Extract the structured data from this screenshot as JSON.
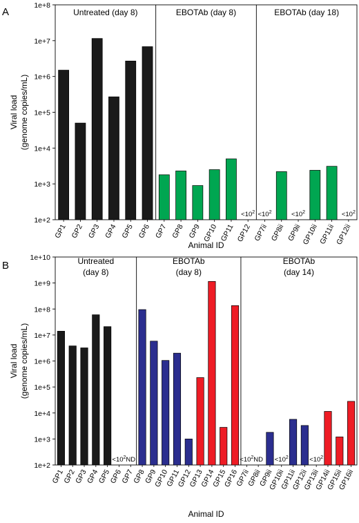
{
  "chart_data": [
    {
      "type": "bar",
      "panel_label": "A",
      "xlabel": "Animal ID",
      "ylabel": "Viral load",
      "ylabel_line2": "(genome copies/mL)",
      "yscale": "log",
      "ylim": [
        100,
        100000000
      ],
      "yticks": [
        {
          "value": 100,
          "base": "1e+",
          "exp": "2"
        },
        {
          "value": 1000,
          "base": "1e+",
          "exp": "3"
        },
        {
          "value": 10000,
          "base": "1e+",
          "exp": "4"
        },
        {
          "value": 100000,
          "base": "1e+",
          "exp": "5"
        },
        {
          "value": 1000000,
          "base": "1e+",
          "exp": "6"
        },
        {
          "value": 10000000,
          "base": "1e+",
          "exp": "7"
        },
        {
          "value": 100000000,
          "base": "1e+",
          "exp": "8"
        }
      ],
      "groups": [
        {
          "label": "Untreated (day 8)",
          "label_line2": "",
          "from": 0,
          "to": 5
        },
        {
          "label": "EBOTAb (day 8)",
          "label_line2": "",
          "from": 6,
          "to": 11
        },
        {
          "label": "EBOTAb (day 18)",
          "label_line2": "",
          "from": 12,
          "to": 17
        }
      ],
      "categories": [
        "GP1",
        "GP2",
        "GP3",
        "GP4",
        "GP5",
        "GP6",
        "GP7",
        "GP8",
        "GP9",
        "GP10",
        "GP11",
        "GP12",
        "GP7ii",
        "GP8ii",
        "GP9ii",
        "GP10ii",
        "GP11ii",
        "GP12ii"
      ],
      "values": [
        1500000,
        50000,
        11500000,
        270000,
        2700000,
        6800000,
        1800,
        2300,
        900,
        2500,
        5000,
        null,
        null,
        2200,
        null,
        2400,
        3100,
        null
      ],
      "colors": [
        "#1a1a1a",
        "#1a1a1a",
        "#1a1a1a",
        "#1a1a1a",
        "#1a1a1a",
        "#1a1a1a",
        "#00a651",
        "#00a651",
        "#00a651",
        "#00a651",
        "#00a651",
        "#00a651",
        "#00a651",
        "#00a651",
        "#00a651",
        "#00a651",
        "#00a651",
        "#00a651"
      ],
      "annotations": [
        {
          "index": 11,
          "text": "<10",
          "sup": "2"
        },
        {
          "index": 12,
          "text": "<10",
          "sup": "2"
        },
        {
          "index": 14,
          "text": "<10",
          "sup": "2"
        },
        {
          "index": 17,
          "text": "<10",
          "sup": "2"
        }
      ]
    },
    {
      "type": "bar",
      "panel_label": "B",
      "xlabel": "Animal ID",
      "ylabel": "Viral load",
      "ylabel_line2": "(genome copies/mL)",
      "yscale": "log",
      "ylim": [
        100,
        10000000000
      ],
      "yticks": [
        {
          "value": 100,
          "base": "1e+",
          "exp": "2"
        },
        {
          "value": 1000,
          "base": "1e+",
          "exp": "3"
        },
        {
          "value": 10000,
          "base": "1e+",
          "exp": "4"
        },
        {
          "value": 100000,
          "base": "1e+",
          "exp": "5"
        },
        {
          "value": 1000000,
          "base": "1e+",
          "exp": "6"
        },
        {
          "value": 10000000,
          "base": "1e+",
          "exp": "7"
        },
        {
          "value": 100000000,
          "base": "1e+",
          "exp": "8"
        },
        {
          "value": 1000000000,
          "base": "1e+",
          "exp": "9"
        },
        {
          "value": 10000000000,
          "base": "1e+",
          "exp": "10"
        }
      ],
      "groups": [
        {
          "label": "Untreated",
          "label_line2": "(day 8)",
          "from": 0,
          "to": 6
        },
        {
          "label": "EBOTAb",
          "label_line2": "(day 8)",
          "from": 7,
          "to": 15
        },
        {
          "label": "EBOTAb",
          "label_line2": "(day 14)",
          "from": 16,
          "to": 25
        }
      ],
      "categories": [
        "GP1",
        "GP2",
        "GP3",
        "GP4",
        "GP5",
        "GP6",
        "GP7",
        "GP8",
        "GP9",
        "GP10",
        "GP11",
        "GP12",
        "GP13",
        "GP14",
        "GP15",
        "GP16",
        "GP7ii",
        "GP8ii",
        "GP9ii",
        "GP10ii",
        "GP11ii",
        "GP12ii",
        "GP13ii",
        "GP14ii",
        "GP15ii",
        "GP16ii"
      ],
      "values": [
        14000000,
        3800000,
        3200000,
        60000000,
        21000000,
        null,
        null,
        95000000,
        5800000,
        1050000,
        2000000,
        1000,
        230000,
        1150000000,
        2800,
        135000000,
        null,
        null,
        1800,
        null,
        5700,
        3300,
        null,
        11500,
        1200,
        28000
      ],
      "colors": [
        "#1a1a1a",
        "#1a1a1a",
        "#1a1a1a",
        "#1a1a1a",
        "#1a1a1a",
        "#1a1a1a",
        "#1a1a1a",
        "#2b2e8f",
        "#2b2e8f",
        "#2b2e8f",
        "#2b2e8f",
        "#2b2e8f",
        "#ee1c25",
        "#ee1c25",
        "#ee1c25",
        "#ee1c25",
        "#2b2e8f",
        "#2b2e8f",
        "#2b2e8f",
        "#2b2e8f",
        "#2b2e8f",
        "#2b2e8f",
        "#ee1c25",
        "#ee1c25",
        "#ee1c25",
        "#ee1c25"
      ],
      "annotations": [
        {
          "index": 5,
          "text": "<10",
          "sup": "2"
        },
        {
          "index": 6,
          "text": "ND",
          "sup": ""
        },
        {
          "index": 16,
          "text": "<10",
          "sup": "2"
        },
        {
          "index": 17,
          "text": "ND",
          "sup": ""
        },
        {
          "index": 19,
          "text": "<10",
          "sup": "2"
        },
        {
          "index": 22,
          "text": "<10",
          "sup": "2"
        }
      ]
    }
  ]
}
